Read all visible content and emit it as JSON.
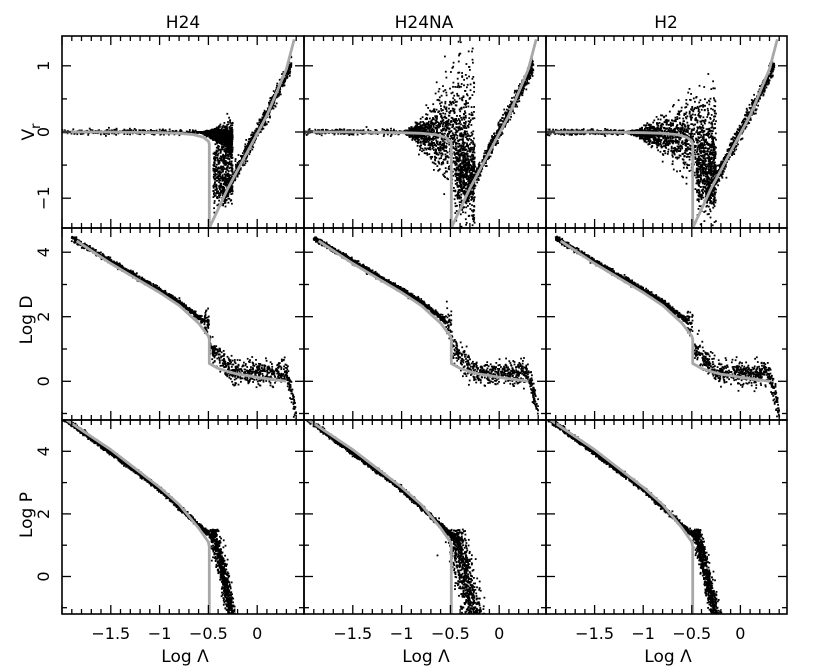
{
  "chart_data": {
    "type": "scatter",
    "columns": [
      "H24",
      "H24NA",
      "H2"
    ],
    "xlabel": "Log Λ",
    "xlim": [
      -2.0,
      0.48
    ],
    "xticks": [
      -1.5,
      -1,
      -0.5,
      0
    ],
    "xtick_labels": [
      "−1.5",
      "−1",
      "−0.5",
      "0"
    ],
    "rows": [
      {
        "key": "vr",
        "ylabel_main": "V",
        "ylabel_sub": "r",
        "ylim": [
          -1.45,
          1.45
        ],
        "yticks": [
          -1,
          0,
          1
        ],
        "ytick_labels": [
          "−1",
          "0",
          "1"
        ]
      },
      {
        "key": "logD",
        "ylabel": "Log D",
        "ylim": [
          -1.2,
          4.75
        ],
        "yticks": [
          0,
          2,
          4
        ],
        "ytick_labels": [
          "0",
          "2",
          "4"
        ]
      },
      {
        "key": "logP",
        "ylabel": "Log P",
        "ylim": [
          -1.2,
          5.0
        ],
        "yticks": [
          0,
          2,
          4
        ],
        "ytick_labels": [
          "0",
          "2",
          "4"
        ]
      }
    ],
    "shock_position": -0.49,
    "model_curves": {
      "vr": {
        "x": [
          -2.0,
          -1.5,
          -1.0,
          -0.8,
          -0.65,
          -0.55,
          -0.5,
          -0.49,
          -0.49,
          -0.3,
          -0.1,
          0.1,
          0.3,
          0.38
        ],
        "y": [
          0,
          0,
          -0.01,
          -0.02,
          -0.04,
          -0.08,
          -0.14,
          -0.18,
          -1.45,
          -0.85,
          -0.3,
          0.25,
          0.95,
          1.4
        ]
      },
      "logD": {
        "x": [
          -1.85,
          -1.5,
          -1.0,
          -0.8,
          -0.6,
          -0.5,
          -0.49,
          -0.49,
          -0.4,
          -0.3,
          -0.2,
          -0.1,
          0,
          0.15,
          0.3
        ],
        "y": [
          4.35,
          3.65,
          2.75,
          2.35,
          1.8,
          1.4,
          1.3,
          0.55,
          0.4,
          0.3,
          0.22,
          0.18,
          0.12,
          0.06,
          0.0
        ]
      },
      "logP": {
        "x": [
          -2.0,
          -1.5,
          -1.0,
          -0.8,
          -0.6,
          -0.5,
          -0.49,
          -0.49
        ],
        "y": [
          5.1,
          4.05,
          2.85,
          2.3,
          1.55,
          1.1,
          0.95,
          -1.2
        ]
      }
    }
  }
}
